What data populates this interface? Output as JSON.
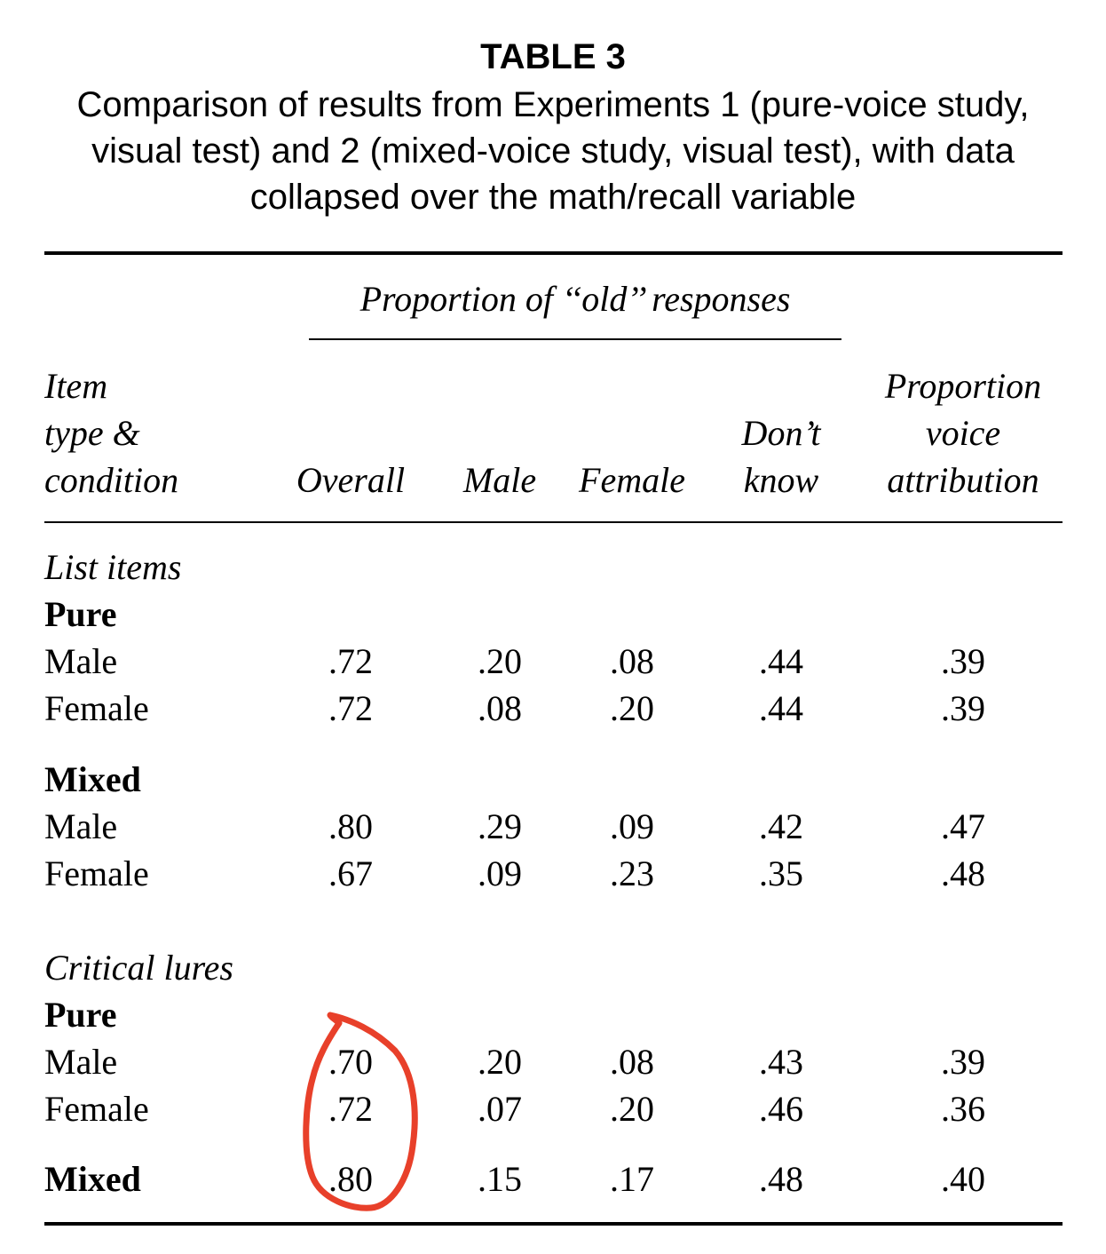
{
  "table": {
    "title": "TABLE 3",
    "caption": "Comparison of results from Experiments 1 (pure-voice study, visual test) and 2 (mixed-voice study, visual test), with data collapsed over the math/recall variable",
    "spanner": "Proportion of ‘‘old’’ responses",
    "headers": {
      "item": [
        "Item",
        "type &",
        "condition"
      ],
      "overall": "Overall",
      "male": "Male",
      "female": "Female",
      "dont_know": [
        "Don’t",
        "know"
      ],
      "attribution": [
        "Proportion",
        "voice",
        "attribution"
      ]
    },
    "list_items": {
      "label": "List items",
      "pure": {
        "label": "Pure",
        "rows": [
          {
            "label": "Male",
            "values": [
              ".72",
              ".20",
              ".08",
              ".44",
              ".39"
            ]
          },
          {
            "label": "Female",
            "values": [
              ".72",
              ".08",
              ".20",
              ".44",
              ".39"
            ]
          }
        ]
      },
      "mixed": {
        "label": "Mixed",
        "rows": [
          {
            "label": "Male",
            "values": [
              ".80",
              ".29",
              ".09",
              ".42",
              ".47"
            ]
          },
          {
            "label": "Female",
            "values": [
              ".67",
              ".09",
              ".23",
              ".35",
              ".48"
            ]
          }
        ]
      }
    },
    "critical_lures": {
      "label": "Critical lures",
      "pure": {
        "label": "Pure",
        "rows": [
          {
            "label": "Male",
            "values": [
              ".70",
              ".20",
              ".08",
              ".43",
              ".39"
            ]
          },
          {
            "label": "Female",
            "values": [
              ".72",
              ".07",
              ".20",
              ".46",
              ".36"
            ]
          }
        ]
      },
      "mixed": {
        "label": "Mixed",
        "values": [
          ".80",
          ".15",
          ".17",
          ".48",
          ".40"
        ]
      }
    }
  },
  "annotation": {
    "color": "#e8402a",
    "shape": "hand-drawn-circle",
    "target": "critical lures overall column"
  }
}
